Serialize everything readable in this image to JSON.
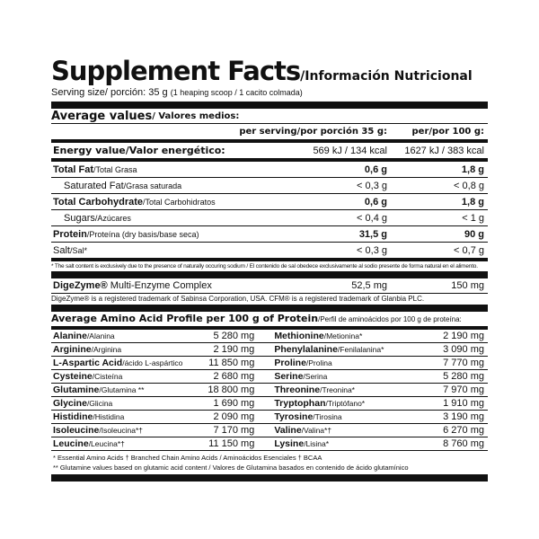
{
  "title": {
    "main": "Supplement Facts",
    "sub": "/Información Nutricional"
  },
  "serving": {
    "label": "Serving size/ porción: 35 g",
    "detail": "(1 heaping scoop / 1 cacito colmada)"
  },
  "average": {
    "main": "Average values",
    "sub": " / Valores medios:"
  },
  "columns": {
    "per_serving": "per serving/por porción 35 g:",
    "per_100": "per/por 100 g:"
  },
  "energy": {
    "label": "Energy value/Valor energético:",
    "per_serving": "569 kJ / 134 kcal",
    "per_100": "1627 kJ / 383 kcal"
  },
  "nutrients": [
    {
      "main": "Total Fat",
      "sub": "/Total Grasa",
      "per_serving": "0,6 g",
      "per_100": "1,8 g",
      "bold": true,
      "indent": false
    },
    {
      "main": "Saturated Fat",
      "sub": "/Grasa saturada",
      "per_serving": "< 0,3 g",
      "per_100": "< 0,8 g",
      "bold": false,
      "indent": true
    },
    {
      "main": "Total Carbohydrate",
      "sub": "/Total Carbohidratos",
      "per_serving": "0,6 g",
      "per_100": "1,8 g",
      "bold": true,
      "indent": false
    },
    {
      "main": "Sugars",
      "sub": "/Azúcares",
      "per_serving": "< 0,4 g",
      "per_100": "< 1 g",
      "bold": false,
      "indent": true
    },
    {
      "main": "Protein",
      "sub": "/Proteína (dry basis/base seca)",
      "per_serving": "31,5 g",
      "per_100": "90 g",
      "bold": true,
      "indent": false
    },
    {
      "main": "Salt",
      "sub": "/Sal*",
      "per_serving": "< 0,3 g",
      "per_100": "< 0,7 g",
      "bold": false,
      "indent": false
    }
  ],
  "salt_note": "* The salt content is exclusively due to the presence of naturally occuring sodium / El contenido de sal obedece exclusivamente al sodio presente de forma natural en el alimento.",
  "digezyme": {
    "main": "DigeZyme®",
    "sub": " Multi-Enzyme Complex",
    "per_serving": "52,5 mg",
    "per_100": "150 mg"
  },
  "trademark": "DigeZyme® is a registered trademark of Sabinsa Corporation, USA. CFM® is a registered trademark of Glanbia PLC.",
  "amino_header": {
    "main": "Average Amino Acid Profile per 100 g of Protein",
    "sub": "/Perfil de aminoácidos por 100 g de proteína:"
  },
  "amino_left": [
    {
      "main": "Alanine",
      "sub": "/Alanina",
      "value": "5 280 mg"
    },
    {
      "main": "Arginine",
      "sub": "/Arginina",
      "value": "2 190 mg"
    },
    {
      "main": "L-Aspartic Acid",
      "sub": "/ácido L-aspártico",
      "value": "11 850 mg"
    },
    {
      "main": "Cysteine",
      "sub": "/Cisteína",
      "value": "2 680 mg"
    },
    {
      "main": "Glutamine",
      "sub": "/Glutamina **",
      "value": "18 800 mg"
    },
    {
      "main": "Glycine",
      "sub": "/Glicina",
      "value": "1 690 mg"
    },
    {
      "main": "Histidine",
      "sub": "/Histidina",
      "value": "2 090 mg"
    },
    {
      "main": "Isoleucine",
      "sub": "/Isoleucina*†",
      "value": "7 170 mg"
    },
    {
      "main": "Leucine",
      "sub": "/Leucina*†",
      "value": "11 150 mg"
    }
  ],
  "amino_right": [
    {
      "main": "Methionine",
      "sub": "/Metionina*",
      "value": "2 190 mg"
    },
    {
      "main": "Phenylalanine",
      "sub": "/Fenilalanina*",
      "value": "3 090 mg"
    },
    {
      "main": "Proline",
      "sub": "/Prolina",
      "value": "7 770 mg"
    },
    {
      "main": "Serine",
      "sub": "/Serina",
      "value": "5 280 mg"
    },
    {
      "main": "Threonine",
      "sub": "/Treonina*",
      "value": "7 970 mg"
    },
    {
      "main": "Tryptophan",
      "sub": "/Triptófano*",
      "value": "1 910 mg"
    },
    {
      "main": "Tyrosine",
      "sub": "/Tirosina",
      "value": "3 190 mg"
    },
    {
      "main": "Valine",
      "sub": "/Valina*†",
      "value": "6 270 mg"
    },
    {
      "main": "Lysine",
      "sub": "/Lisina*",
      "value": "8 760 mg"
    }
  ],
  "amino_notes": [
    "* Essential Amino Acids    † Branched Chain Amino Acids / Aminoácidos Esenciales    † BCAA",
    "** Glutamine values based on glutamic acid content / Valores de Glutamina basados en contenido de ácido glutamínico"
  ]
}
